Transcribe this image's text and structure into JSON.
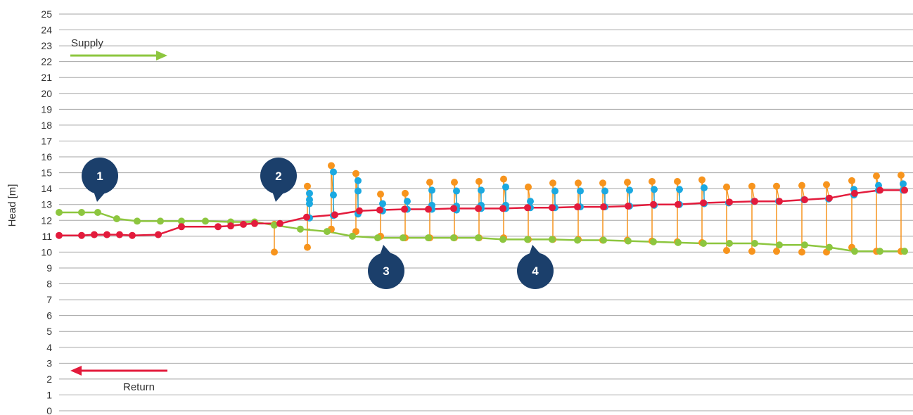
{
  "chart_data": {
    "type": "line",
    "title": "",
    "xlabel": "",
    "ylabel": "Head [m]",
    "ylim": [
      0,
      25
    ],
    "yticks": [
      0,
      1,
      2,
      3,
      4,
      5,
      6,
      7,
      8,
      9,
      10,
      11,
      12,
      13,
      14,
      15,
      16,
      17,
      18,
      19,
      20,
      21,
      22,
      23,
      24,
      25
    ],
    "grid": "horizontal",
    "supply_label": "Supply",
    "return_label": "Return",
    "callouts": [
      "1",
      "2",
      "3",
      "4"
    ],
    "colors": {
      "supply": "#8dc63f",
      "return": "#e31b3c",
      "branch": "#f7941d",
      "node": "#1ba9e1",
      "callout": "#1b3f6b",
      "grid": "#a5a5a5"
    },
    "series": [
      {
        "key": "supply",
        "x": [
          0,
          32,
          55,
          82,
          111,
          144,
          174,
          208,
          244,
          278,
          306,
          343,
          381,
          417,
          453,
          489,
          525,
          561,
          596,
          631,
          666,
          701,
          737,
          774,
          809,
          845,
          880,
          916,
          953,
          989,
          1024,
          1060,
          1095,
          1131,
          1167,
          1202
        ],
        "values": [
          12.5,
          12.5,
          12.5,
          12.1,
          11.95,
          11.95,
          11.95,
          11.95,
          11.9,
          11.9,
          11.7,
          11.45,
          11.3,
          11.0,
          10.9,
          10.9,
          10.9,
          10.9,
          10.9,
          10.8,
          10.8,
          10.8,
          10.75,
          10.75,
          10.7,
          10.65,
          10.6,
          10.55,
          10.55,
          10.55,
          10.45,
          10.45,
          10.3,
          10.05,
          10.05,
          10.05
        ]
      },
      {
        "key": "return",
        "x": [
          0,
          32,
          50,
          68,
          86,
          104,
          141,
          174,
          226,
          244,
          262,
          278,
          314,
          352,
          392,
          427,
          456,
          491,
          525,
          561,
          596,
          631,
          666,
          701,
          737,
          774,
          809,
          845,
          880,
          916,
          953,
          989,
          1024,
          1060,
          1095,
          1131,
          1167,
          1202
        ],
        "values": [
          11.05,
          11.05,
          11.1,
          11.1,
          11.1,
          11.05,
          11.1,
          11.6,
          11.6,
          11.65,
          11.75,
          11.8,
          11.8,
          12.2,
          12.35,
          12.6,
          12.65,
          12.7,
          12.7,
          12.75,
          12.75,
          12.75,
          12.8,
          12.8,
          12.85,
          12.85,
          12.9,
          13.0,
          13.0,
          13.1,
          13.15,
          13.2,
          13.2,
          13.3,
          13.4,
          13.7,
          13.9,
          13.9
        ]
      }
    ],
    "branches": [
      {
        "x": 306,
        "supply": 11.7,
        "return": 11.8,
        "high": 11.75,
        "low": 10.0,
        "nodes": []
      },
      {
        "x": 353,
        "supply": 11.45,
        "return": 12.2,
        "high": 14.15,
        "low": 10.3,
        "nodes": [
          13.7,
          13.3,
          13.05,
          12.15
        ]
      },
      {
        "x": 387,
        "supply": 11.3,
        "return": 12.35,
        "high": 15.45,
        "low": 11.45,
        "nodes": [
          15.05,
          13.6,
          12.3
        ]
      },
      {
        "x": 422,
        "supply": 11.3,
        "return": 12.4,
        "high": 14.95,
        "low": 11.3,
        "nodes": [
          14.5,
          13.85,
          12.4
        ]
      },
      {
        "x": 457,
        "supply": 11.0,
        "return": 12.6,
        "high": 13.65,
        "low": 11.0,
        "nodes": [
          13.05,
          12.6
        ]
      },
      {
        "x": 492,
        "supply": 10.9,
        "return": 12.65,
        "high": 13.7,
        "low": 10.9,
        "nodes": [
          13.2,
          12.7
        ]
      },
      {
        "x": 527,
        "supply": 10.9,
        "return": 12.7,
        "high": 14.4,
        "low": 10.9,
        "nodes": [
          13.9,
          12.95,
          12.7
        ]
      },
      {
        "x": 562,
        "supply": 10.9,
        "return": 12.7,
        "high": 14.4,
        "low": 10.9,
        "nodes": [
          13.85,
          12.9,
          12.65
        ]
      },
      {
        "x": 597,
        "supply": 10.9,
        "return": 12.75,
        "high": 14.45,
        "low": 10.9,
        "nodes": [
          13.9,
          12.95,
          12.75
        ]
      },
      {
        "x": 632,
        "supply": 10.9,
        "return": 12.75,
        "high": 14.6,
        "low": 10.9,
        "nodes": [
          14.1,
          12.95,
          12.75
        ]
      },
      {
        "x": 667,
        "supply": 10.8,
        "return": 12.75,
        "high": 14.1,
        "low": 10.8,
        "nodes": [
          13.2,
          12.8
        ]
      },
      {
        "x": 702,
        "supply": 10.8,
        "return": 12.8,
        "high": 14.35,
        "low": 10.8,
        "nodes": [
          13.85,
          12.8
        ]
      },
      {
        "x": 738,
        "supply": 10.8,
        "return": 12.85,
        "high": 14.35,
        "low": 10.8,
        "nodes": [
          13.85,
          12.85
        ]
      },
      {
        "x": 773,
        "supply": 10.75,
        "return": 12.85,
        "high": 14.35,
        "low": 10.75,
        "nodes": [
          13.85,
          12.85
        ]
      },
      {
        "x": 808,
        "supply": 10.75,
        "return": 12.9,
        "high": 14.4,
        "low": 10.75,
        "nodes": [
          13.9,
          12.9
        ]
      },
      {
        "x": 843,
        "supply": 10.7,
        "return": 12.95,
        "high": 14.45,
        "low": 10.7,
        "nodes": [
          13.95,
          12.95
        ]
      },
      {
        "x": 879,
        "supply": 10.65,
        "return": 13.0,
        "high": 14.45,
        "low": 10.65,
        "nodes": [
          13.95,
          13.0
        ]
      },
      {
        "x": 914,
        "supply": 10.6,
        "return": 13.05,
        "high": 14.55,
        "low": 10.6,
        "nodes": [
          14.05,
          13.05
        ]
      },
      {
        "x": 949,
        "supply": 10.55,
        "return": 13.1,
        "high": 14.1,
        "low": 10.1,
        "nodes": [
          13.1
        ]
      },
      {
        "x": 985,
        "supply": 10.55,
        "return": 13.2,
        "high": 14.15,
        "low": 10.05,
        "nodes": [
          13.2
        ]
      },
      {
        "x": 1020,
        "supply": 10.55,
        "return": 13.2,
        "high": 14.15,
        "low": 10.05,
        "nodes": [
          13.2
        ]
      },
      {
        "x": 1056,
        "supply": 10.45,
        "return": 13.3,
        "high": 14.2,
        "low": 10.0,
        "nodes": [
          13.3
        ]
      },
      {
        "x": 1091,
        "supply": 10.45,
        "return": 13.35,
        "high": 14.25,
        "low": 10.0,
        "nodes": [
          13.35
        ]
      },
      {
        "x": 1127,
        "supply": 10.3,
        "return": 13.6,
        "high": 14.5,
        "low": 10.3,
        "nodes": [
          13.95,
          13.6
        ]
      },
      {
        "x": 1162,
        "supply": 10.05,
        "return": 13.9,
        "high": 14.8,
        "low": 10.05,
        "nodes": [
          14.2,
          13.9
        ]
      },
      {
        "x": 1197,
        "supply": 10.05,
        "return": 13.9,
        "high": 14.85,
        "low": 10.05,
        "nodes": [
          14.3,
          13.9
        ]
      }
    ]
  }
}
